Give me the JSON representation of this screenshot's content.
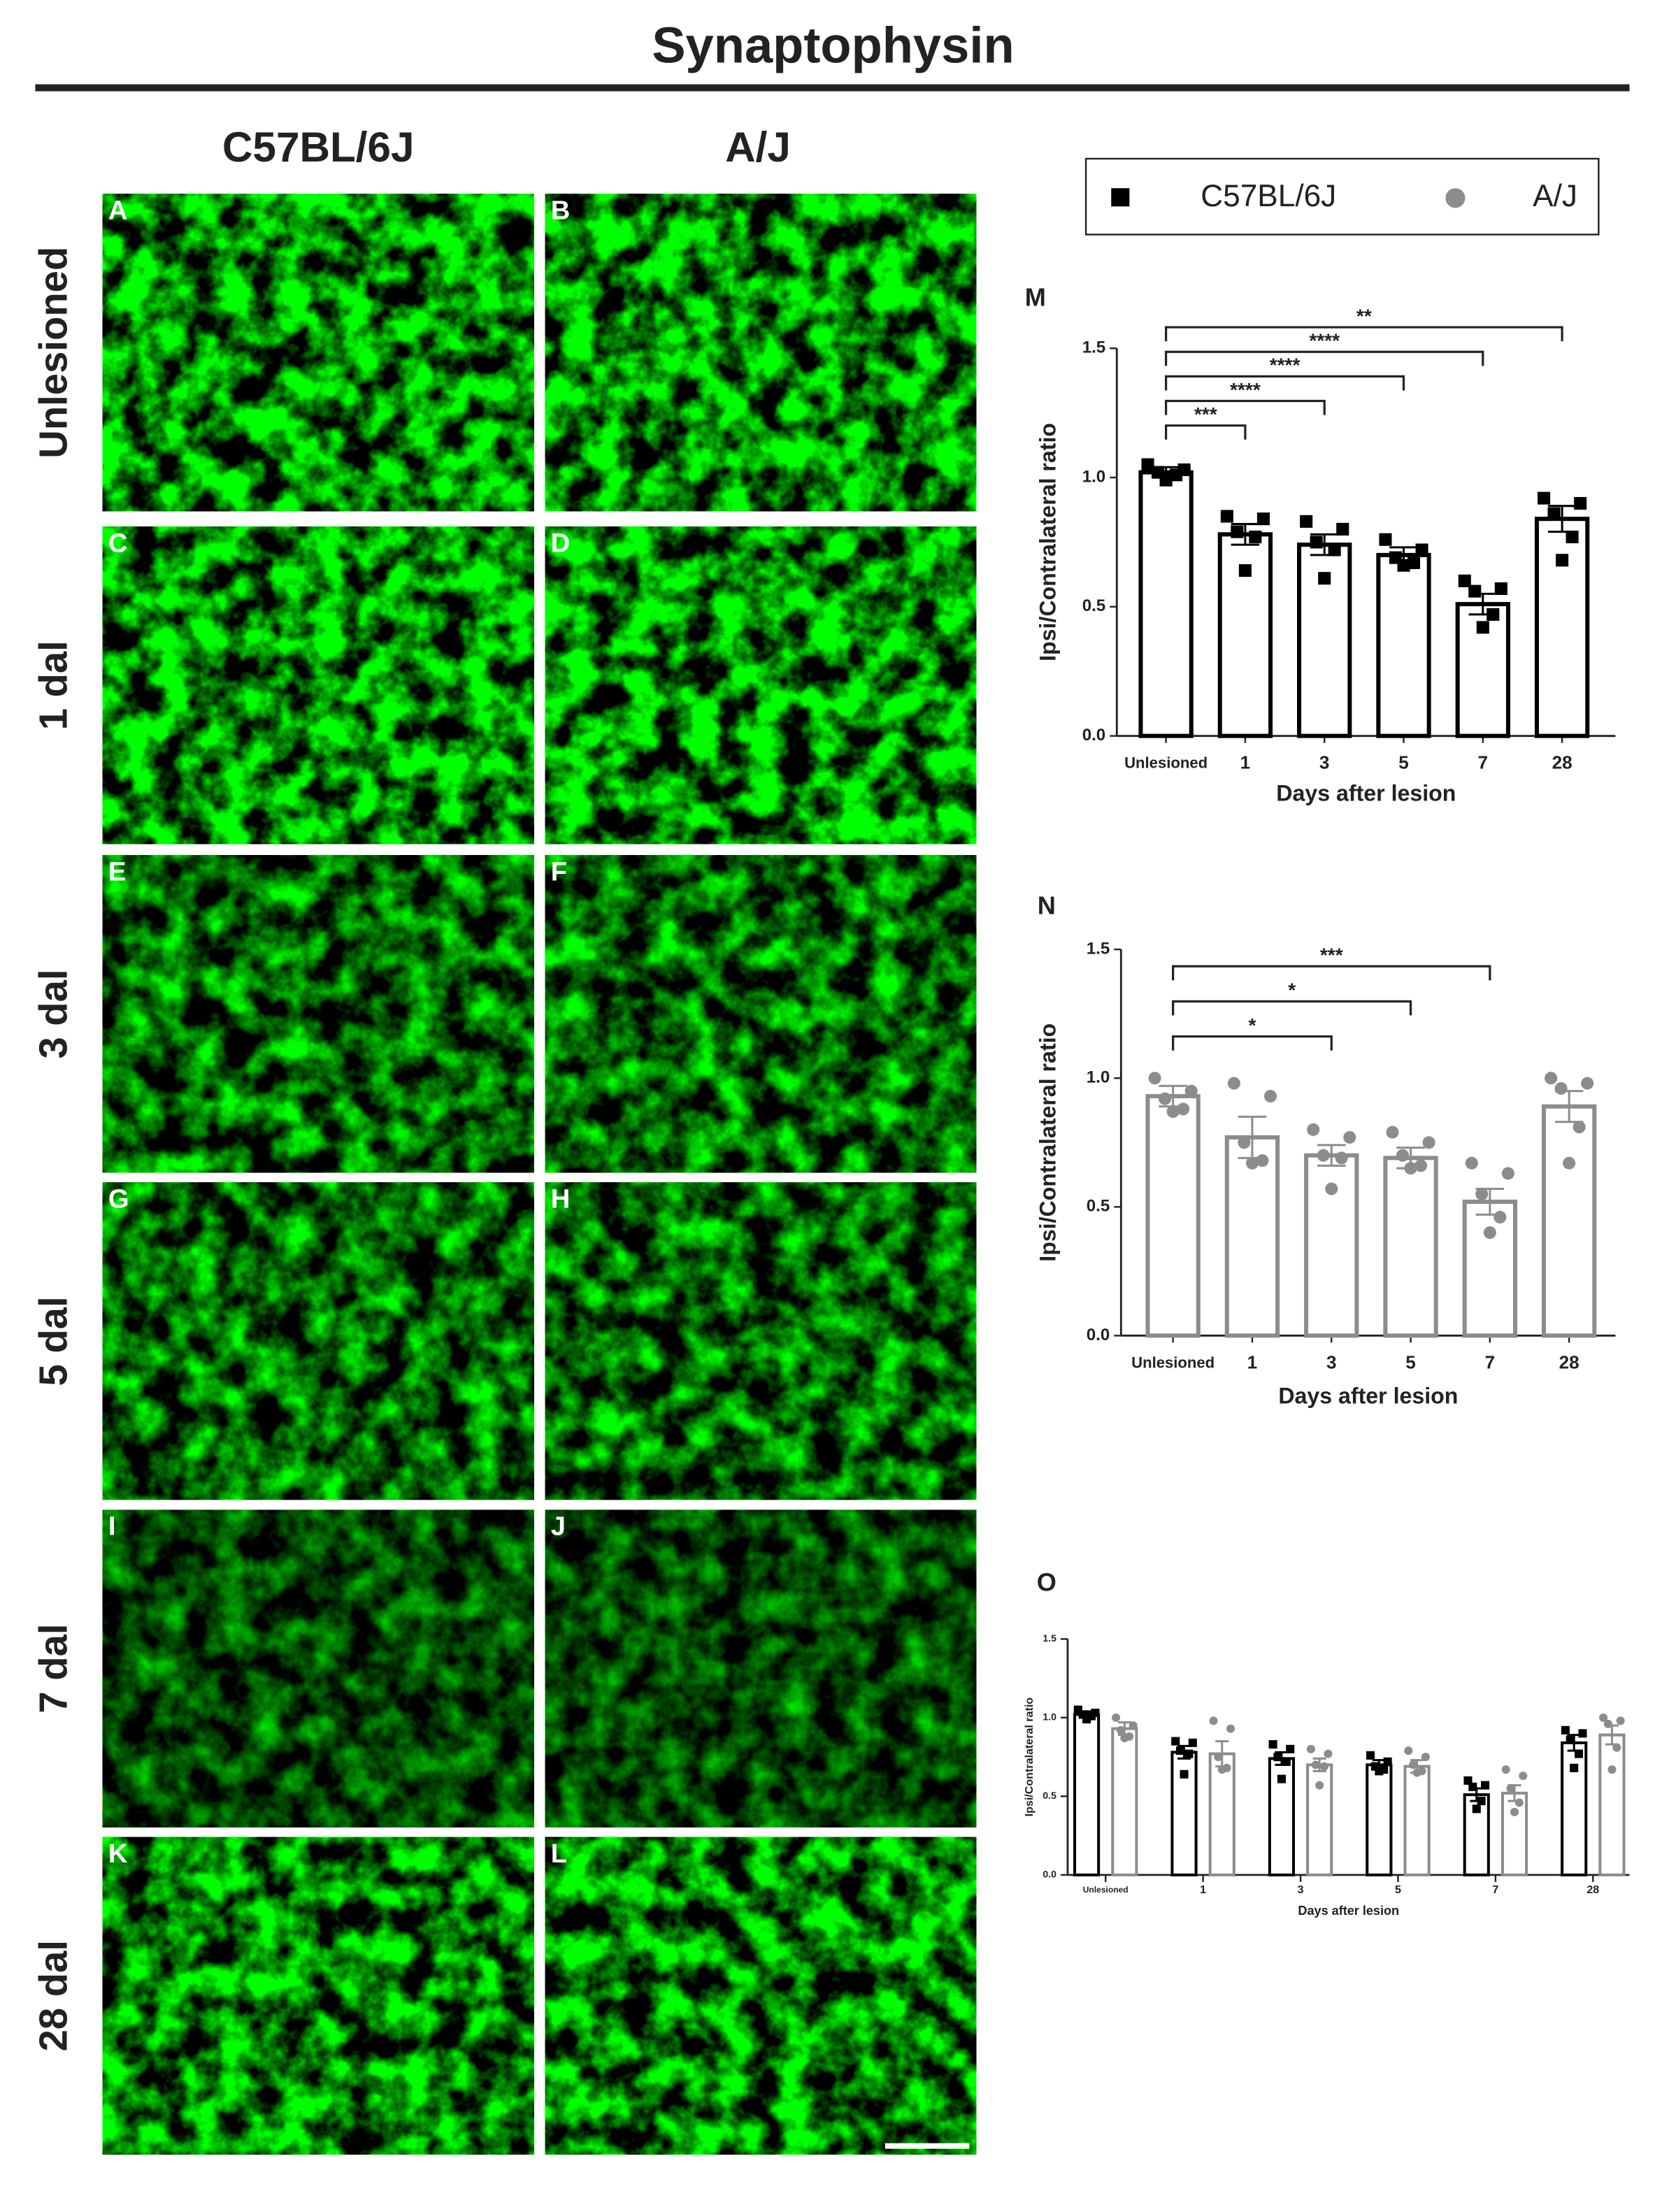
{
  "title": "Synaptophysin",
  "columns": [
    "C57BL/6J",
    "A/J"
  ],
  "rows": [
    "Unlesioned",
    "1 dal",
    "3 dal",
    "5 dal",
    "7 dal",
    "28 dal"
  ],
  "panels": [
    [
      "A",
      "B"
    ],
    [
      "C",
      "D"
    ],
    [
      "E",
      "F"
    ],
    [
      "G",
      "H"
    ],
    [
      "I",
      "J"
    ],
    [
      "K",
      "L"
    ]
  ],
  "chart_data": [
    {
      "type": "bar",
      "letter": "M",
      "xlabel": "Days after lesion",
      "ylabel": "Ipsi/Contralateral ratio",
      "categories": [
        "Unlesioned",
        "1",
        "3",
        "5",
        "7",
        "28"
      ],
      "values": [
        1.02,
        0.78,
        0.74,
        0.7,
        0.51,
        0.84
      ],
      "errors": [
        0.02,
        0.04,
        0.04,
        0.03,
        0.04,
        0.05
      ],
      "points": [
        [
          1.05,
          1.03,
          1.02,
          1.01,
          0.99
        ],
        [
          0.85,
          0.84,
          0.79,
          0.77,
          0.64
        ],
        [
          0.83,
          0.8,
          0.75,
          0.72,
          0.61
        ],
        [
          0.76,
          0.72,
          0.69,
          0.67,
          0.66
        ],
        [
          0.6,
          0.57,
          0.56,
          0.47,
          0.42
        ],
        [
          0.92,
          0.9,
          0.86,
          0.77,
          0.68
        ]
      ],
      "color": "#000000",
      "marker": "square",
      "ylim": [
        0,
        1.5
      ],
      "yticks": [
        {
          "value": 0,
          "label": "0.0"
        },
        {
          "value": 0.5,
          "label": "0.5"
        },
        {
          "value": 1,
          "label": "1.0"
        },
        {
          "value": 1.5,
          "label": "1.5"
        }
      ],
      "comparisons": [
        {
          "categories": [
            "Unlesioned",
            "1"
          ],
          "label": "***"
        },
        {
          "categories": [
            "Unlesioned",
            "3"
          ],
          "label": "****"
        },
        {
          "categories": [
            "Unlesioned",
            "5"
          ],
          "label": "****"
        },
        {
          "categories": [
            "Unlesioned",
            "7"
          ],
          "label": "****"
        },
        {
          "categories": [
            "Unlesioned",
            "28"
          ],
          "label": "**"
        }
      ]
    },
    {
      "type": "bar",
      "letter": "N",
      "xlabel": "Days after lesion",
      "ylabel": "Ipsi/Contralateral ratio",
      "categories": [
        "Unlesioned",
        "1",
        "3",
        "5",
        "7",
        "28"
      ],
      "values": [
        0.93,
        0.77,
        0.7,
        0.69,
        0.52,
        0.89
      ],
      "errors": [
        0.04,
        0.08,
        0.04,
        0.04,
        0.05,
        0.06
      ],
      "points": [
        [
          1.0,
          0.95,
          0.92,
          0.88,
          0.87
        ],
        [
          0.98,
          0.93,
          0.75,
          0.68,
          0.67
        ],
        [
          0.8,
          0.77,
          0.7,
          0.69,
          0.57
        ],
        [
          0.79,
          0.75,
          0.7,
          0.66,
          0.65
        ],
        [
          0.67,
          0.63,
          0.55,
          0.46,
          0.4
        ],
        [
          1.0,
          0.98,
          0.96,
          0.81,
          0.67
        ]
      ],
      "color": "#8c8c8c",
      "marker": "circle",
      "ylim": [
        0,
        1.5
      ],
      "yticks": [
        {
          "value": 0,
          "label": "0.0"
        },
        {
          "value": 0.5,
          "label": "0.5"
        },
        {
          "value": 1,
          "label": "1.0"
        },
        {
          "value": 1.5,
          "label": "1.5"
        }
      ],
      "comparisons": [
        {
          "categories": [
            "Unlesioned",
            "3"
          ],
          "label": "*"
        },
        {
          "categories": [
            "Unlesioned",
            "5"
          ],
          "label": "*"
        },
        {
          "categories": [
            "Unlesioned",
            "7"
          ],
          "label": "***"
        }
      ]
    },
    {
      "type": "grouped-bar",
      "letter": "O",
      "xlabel": "Days after lesion",
      "ylabel": "Ipsi/Contralateral ratio",
      "categories": [
        "Unlesioned",
        "1",
        "3",
        "5",
        "7",
        "28"
      ],
      "series": [
        {
          "name": "C57BL/6J",
          "color": "#000000",
          "marker": "square",
          "values": [
            1.02,
            0.78,
            0.74,
            0.7,
            0.51,
            0.84
          ],
          "errors": [
            0.02,
            0.04,
            0.04,
            0.03,
            0.04,
            0.05
          ],
          "points": [
            [
              1.05,
              1.03,
              1.02,
              1.01,
              0.99
            ],
            [
              0.85,
              0.84,
              0.79,
              0.77,
              0.64
            ],
            [
              0.83,
              0.8,
              0.75,
              0.72,
              0.61
            ],
            [
              0.76,
              0.72,
              0.69,
              0.67,
              0.66
            ],
            [
              0.6,
              0.57,
              0.56,
              0.47,
              0.42
            ],
            [
              0.92,
              0.9,
              0.86,
              0.77,
              0.68
            ]
          ]
        },
        {
          "name": "A/J",
          "color": "#8c8c8c",
          "marker": "circle",
          "values": [
            0.93,
            0.77,
            0.7,
            0.69,
            0.52,
            0.89
          ],
          "errors": [
            0.04,
            0.08,
            0.04,
            0.04,
            0.05,
            0.06
          ],
          "points": [
            [
              1.0,
              0.95,
              0.92,
              0.88,
              0.87
            ],
            [
              0.98,
              0.93,
              0.75,
              0.68,
              0.67
            ],
            [
              0.8,
              0.77,
              0.7,
              0.69,
              0.57
            ],
            [
              0.79,
              0.75,
              0.7,
              0.66,
              0.65
            ],
            [
              0.67,
              0.63,
              0.55,
              0.46,
              0.4
            ],
            [
              1.0,
              0.98,
              0.96,
              0.81,
              0.67
            ]
          ]
        }
      ],
      "ylim": [
        0,
        1.5
      ],
      "yticks": [
        {
          "value": 0,
          "label": "0.0"
        },
        {
          "value": 0.5,
          "label": "0.5"
        },
        {
          "value": 1,
          "label": "1.0"
        },
        {
          "value": 1.5,
          "label": "1.5"
        }
      ]
    }
  ]
}
